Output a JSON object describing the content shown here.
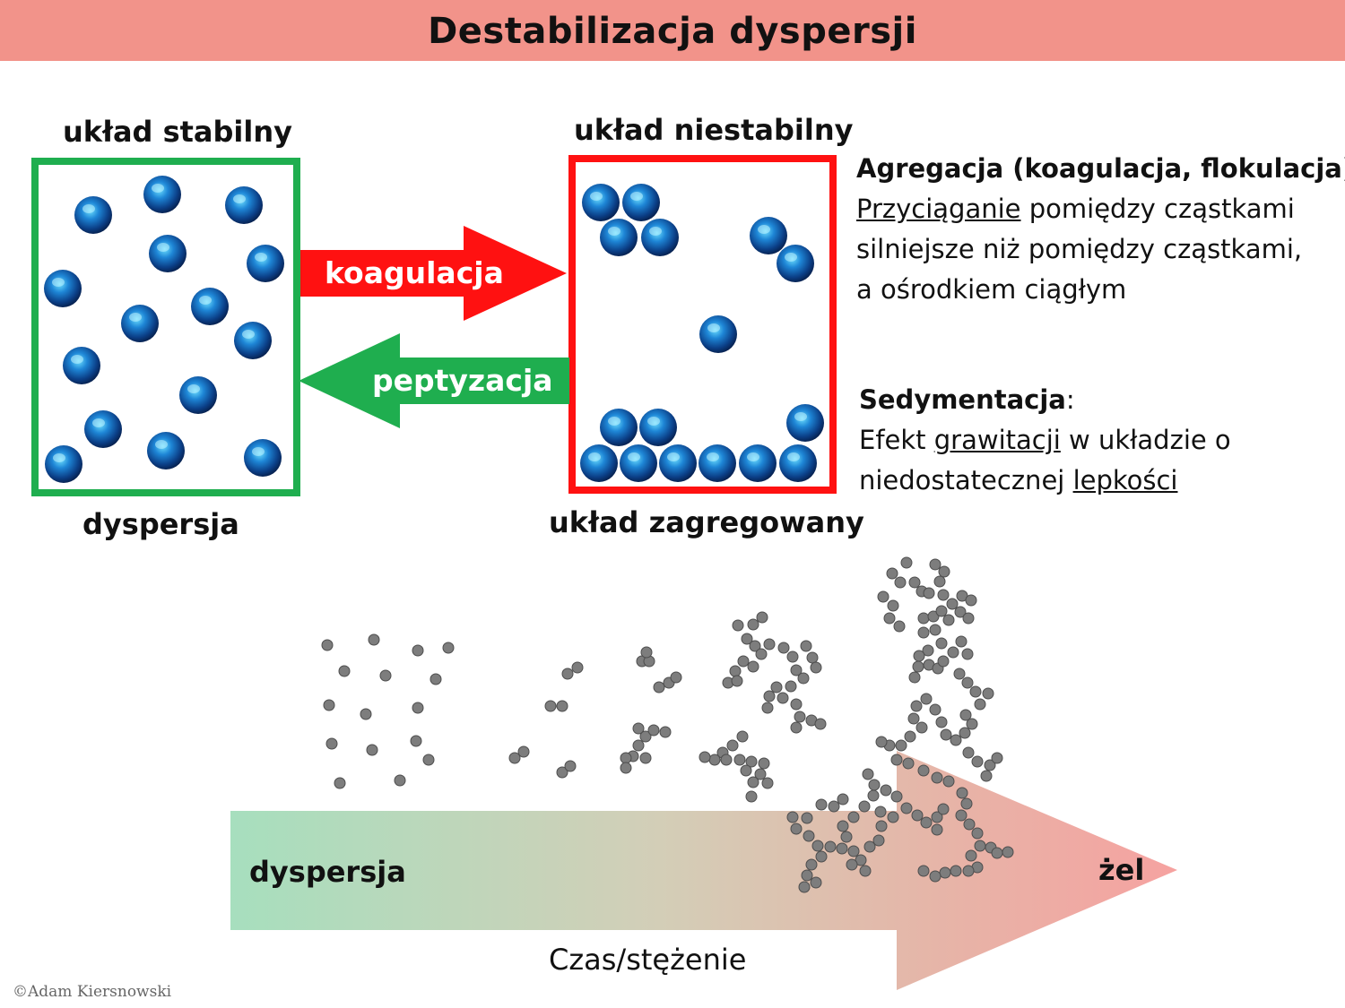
{
  "title": "Destabilizacja dyspersji",
  "stable": {
    "label_top": "układ stabilny",
    "label_bottom": "dyspersja"
  },
  "unstable": {
    "label_top": "układ niestabilny",
    "label_bottom": "układ zagregowany"
  },
  "arrows": {
    "forward": "koagulacja",
    "backward": "peptyzacja"
  },
  "aggregation": {
    "heading": "Agregacja (koagulacja, flokulacja)",
    "colon": ":",
    "line1_u": "Przyciąganie",
    "line1_rest": " pomiędzy cząstkami",
    "line2": "silniejsze niż pomiędzy cząstkami,",
    "line3": "a ośrodkiem ciągłym"
  },
  "sedimentation": {
    "heading": "Sedymentacja",
    "colon": ":",
    "line1_pre": "Efekt ",
    "line1_u": "grawitacji",
    "line1_post": " w układzie o",
    "line2_pre": "niedostatecznej ",
    "line2_u": "lepkości"
  },
  "bottom_arrow": {
    "start": "dyspersja",
    "end": "żel",
    "axis": "Czas/stężenie"
  },
  "copyright": "©Adam Kiersnowski",
  "colors": {
    "header": "#f2938a",
    "green": "#1fae4f",
    "red": "#ff1111",
    "particle": "#1a6fc8",
    "grey_particle": "#7b7b7b"
  }
}
